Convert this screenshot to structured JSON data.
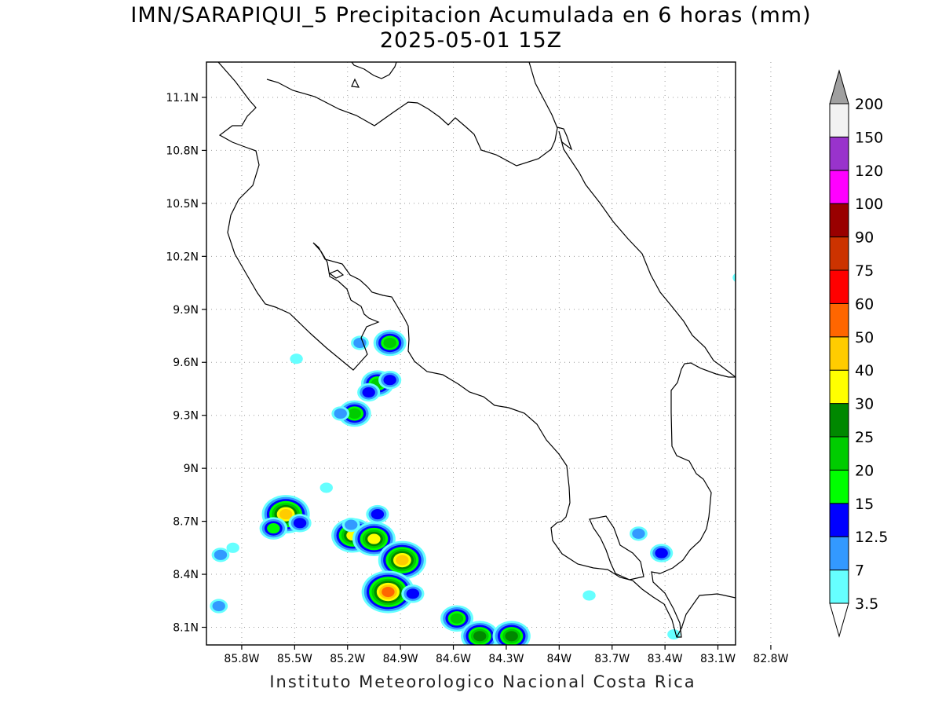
{
  "title": {
    "line1": "IMN/SARAPIQUI_5 Precipitacion Acumulada en 6 horas (mm)",
    "line2": "2025-05-01 15Z"
  },
  "footer": "Instituto Meteorologico Nacional Costa Rica",
  "chart_data": {
    "type": "heatmap",
    "variable": "Precipitacion Acumulada en 6 horas (mm)",
    "x_axis": {
      "range": [
        -86.0,
        -83.0
      ],
      "ticks": [
        -85.8,
        -85.5,
        -85.2,
        -84.9,
        -84.6,
        -84.3,
        -84.0,
        -83.7,
        -83.4,
        -83.1,
        -82.8
      ],
      "tick_labels": [
        "85.8W",
        "85.5W",
        "85.2W",
        "84.9W",
        "84.6W",
        "84.3W",
        "84W",
        "83.7W",
        "83.4W",
        "83.1W",
        "82.8W"
      ]
    },
    "y_axis": {
      "range": [
        8.0,
        11.3
      ],
      "ticks": [
        8.1,
        8.4,
        8.7,
        9.0,
        9.3,
        9.6,
        9.9,
        10.2,
        10.5,
        10.8,
        11.1
      ],
      "tick_labels": [
        "8.1N",
        "8.4N",
        "8.7N",
        "9N",
        "9.3N",
        "9.6N",
        "9.9N",
        "10.2N",
        "10.5N",
        "10.8N",
        "11.1N"
      ]
    },
    "grid": true,
    "colorbar": {
      "levels": [
        "3.5",
        "7",
        "12.5",
        "15",
        "20",
        "25",
        "30",
        "40",
        "50",
        "60",
        "75",
        "90",
        "100",
        "120",
        "150",
        "200"
      ],
      "colors": [
        "#66ffff",
        "#3399ff",
        "#0000ff",
        "#00ff00",
        "#00cc00",
        "#008800",
        "#ffff00",
        "#ffcc00",
        "#ff6600",
        "#ff0000",
        "#cc3300",
        "#990000",
        "#ff00ff",
        "#9933cc",
        "#f2f2f2"
      ],
      "overflow_color": "#a0a0a0"
    },
    "precip_cells": [
      {
        "lon": -85.55,
        "lat": 8.74,
        "max_mm": 40
      },
      {
        "lon": -85.62,
        "lat": 8.66,
        "max_mm": 15
      },
      {
        "lon": -85.47,
        "lat": 8.69,
        "max_mm": 12.5
      },
      {
        "lon": -85.17,
        "lat": 8.62,
        "max_mm": 30
      },
      {
        "lon": -85.05,
        "lat": 8.6,
        "max_mm": 30
      },
      {
        "lon": -85.03,
        "lat": 8.74,
        "max_mm": 12.5
      },
      {
        "lon": -84.89,
        "lat": 8.48,
        "max_mm": 40
      },
      {
        "lon": -84.97,
        "lat": 8.3,
        "max_mm": 50
      },
      {
        "lon": -84.83,
        "lat": 8.29,
        "max_mm": 12.5
      },
      {
        "lon": -84.58,
        "lat": 8.15,
        "max_mm": 20
      },
      {
        "lon": -84.45,
        "lat": 8.05,
        "max_mm": 25
      },
      {
        "lon": -84.27,
        "lat": 8.05,
        "max_mm": 25
      },
      {
        "lon": -85.16,
        "lat": 9.31,
        "max_mm": 20
      },
      {
        "lon": -85.24,
        "lat": 9.31,
        "max_mm": 7
      },
      {
        "lon": -85.03,
        "lat": 9.48,
        "max_mm": 20
      },
      {
        "lon": -84.96,
        "lat": 9.5,
        "max_mm": 12.5
      },
      {
        "lon": -85.08,
        "lat": 9.43,
        "max_mm": 12.5
      },
      {
        "lon": -84.96,
        "lat": 9.71,
        "max_mm": 20
      },
      {
        "lon": -85.13,
        "lat": 9.71,
        "max_mm": 7
      },
      {
        "lon": -85.93,
        "lat": 8.22,
        "max_mm": 7
      },
      {
        "lon": -85.92,
        "lat": 8.51,
        "max_mm": 7
      },
      {
        "lon": -85.85,
        "lat": 8.55,
        "max_mm": 3.5
      },
      {
        "lon": -85.32,
        "lat": 8.89,
        "max_mm": 3.5
      },
      {
        "lon": -85.18,
        "lat": 8.68,
        "max_mm": 7
      },
      {
        "lon": -83.42,
        "lat": 8.52,
        "max_mm": 12.5
      },
      {
        "lon": -83.55,
        "lat": 8.63,
        "max_mm": 7
      },
      {
        "lon": -83.35,
        "lat": 8.06,
        "max_mm": 3.5
      },
      {
        "lon": -83.83,
        "lat": 8.28,
        "max_mm": 3.5
      },
      {
        "lon": -82.98,
        "lat": 10.08,
        "max_mm": 3.5
      },
      {
        "lon": -85.49,
        "lat": 9.62,
        "max_mm": 3.5
      }
    ]
  }
}
